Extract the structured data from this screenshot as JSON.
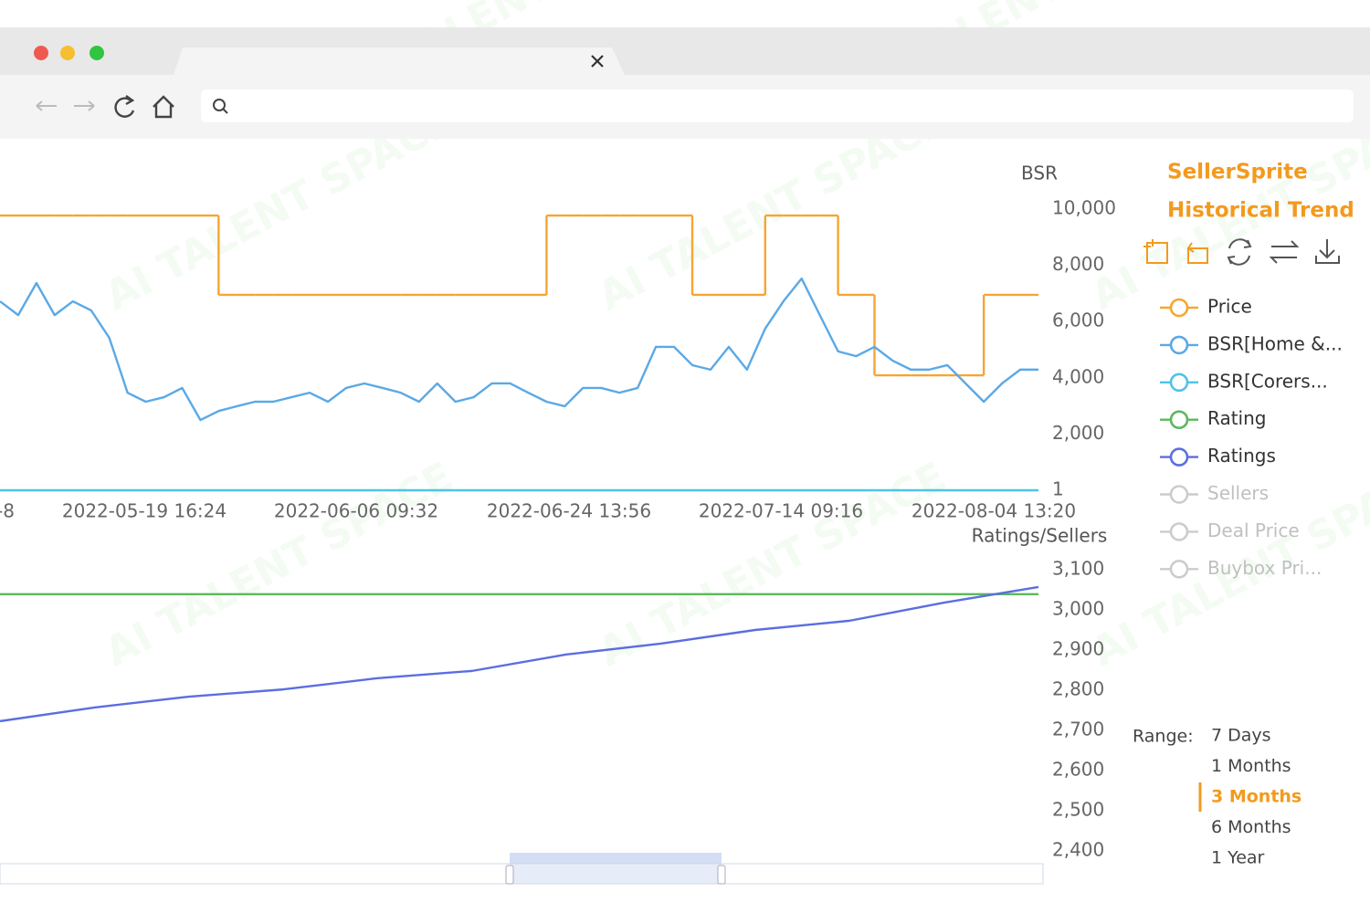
{
  "brand": {
    "name": "SellerSprite",
    "subtitle": "Historical Trend"
  },
  "watermark": "AI TALENT SPACE",
  "bsr_chart": {
    "type": "line",
    "y_label": "BSR",
    "x_labels": [
      "-8",
      "2022-05-19 16:24",
      "2022-06-06 09:32",
      "2022-06-24 13:56",
      "2022-07-14 09:16",
      "2022-08-04 13:20"
    ],
    "ylim": [
      1,
      10000
    ],
    "yticks": [
      1,
      {
        "value": 2000,
        "label": "2,000"
      },
      {
        "value": 4000,
        "label": "4,000"
      },
      {
        "value": 6000,
        "label": "6,000"
      },
      {
        "value": 8000,
        "label": "8,000"
      },
      {
        "value": 10000,
        "label": "10,000"
      }
    ],
    "series": [
      {
        "name": "Price",
        "color": "#f6a532",
        "step": true,
        "values": [
          9770,
          9770,
          9770,
          9770,
          9770,
          9770,
          9770,
          9770,
          9770,
          9770,
          9770,
          9770,
          6950,
          6950,
          6950,
          6950,
          6950,
          6950,
          6950,
          6950,
          6950,
          6950,
          6950,
          6950,
          6950,
          6950,
          6950,
          6950,
          6950,
          6950,
          9770,
          9770,
          9770,
          9770,
          9770,
          9770,
          9770,
          9770,
          6950,
          6950,
          6950,
          6950,
          9770,
          9770,
          9770,
          9770,
          6950,
          6950,
          4090,
          4090,
          4090,
          4090,
          4090,
          4090,
          6950,
          6950,
          6950,
          6950
        ]
      },
      {
        "name": "BSR[Home &...",
        "color": "#5aa9e6",
        "values": [
          6720,
          6230,
          7370,
          6230,
          6720,
          6400,
          5420,
          3470,
          3150,
          3310,
          3640,
          2500,
          2820,
          2990,
          3150,
          3150,
          3310,
          3470,
          3150,
          3640,
          3800,
          3640,
          3470,
          3150,
          3800,
          3150,
          3310,
          3800,
          3800,
          3470,
          3150,
          2990,
          3640,
          3640,
          3470,
          3640,
          5100,
          5100,
          4450,
          4290,
          5100,
          4290,
          5750,
          6720,
          7530,
          6230,
          4940,
          4770,
          5100,
          4610,
          4290,
          4290,
          4450,
          3800,
          3150,
          3800,
          4290,
          4290
        ]
      },
      {
        "name": "BSR[Corers...",
        "color": "#4fc3e8",
        "values": [
          1,
          1,
          1,
          1,
          1,
          1,
          1,
          1,
          1,
          1,
          1,
          1,
          1,
          1,
          1,
          1,
          1,
          1,
          1,
          1,
          1,
          1,
          1,
          1,
          1,
          1,
          1,
          1,
          1,
          1,
          1,
          1,
          1,
          1,
          1,
          1,
          1,
          1,
          1,
          1,
          1,
          1,
          1,
          1,
          1,
          1,
          1,
          1,
          1,
          1,
          1,
          1,
          1,
          1,
          1,
          1,
          1,
          1
        ]
      }
    ]
  },
  "ratings_chart": {
    "type": "line",
    "y_label": "Ratings/Sellers",
    "ylim": [
      2400,
      3100
    ],
    "yticks": [
      {
        "value": 2400,
        "label": "2,400"
      },
      {
        "value": 2500,
        "label": "2,500"
      },
      {
        "value": 2600,
        "label": "2,600"
      },
      {
        "value": 2700,
        "label": "2,700"
      },
      {
        "value": 2800,
        "label": "2,800"
      },
      {
        "value": 2900,
        "label": "2,900"
      },
      {
        "value": 3000,
        "label": "3,000"
      },
      {
        "value": 3100,
        "label": "3,100"
      }
    ],
    "series": [
      {
        "name": "Rating",
        "color": "#5cb85c",
        "values": [
          3039,
          3039,
          3039,
          3039,
          3039,
          3039,
          3039,
          3039,
          3039,
          3039,
          3039,
          3039
        ]
      },
      {
        "name": "Ratings",
        "color": "#5b6ee1",
        "values": [
          2723,
          2757,
          2784,
          2802,
          2830,
          2848,
          2889,
          2916,
          2950,
          2973,
          3018,
          3057
        ]
      }
    ]
  },
  "legend": [
    {
      "name": "Price",
      "color": "#f6a532",
      "active": true
    },
    {
      "name": "BSR[Home &...",
      "color": "#5aa9e6",
      "active": true
    },
    {
      "name": "BSR[Corers...",
      "color": "#4fc3e8",
      "active": true
    },
    {
      "name": "Rating",
      "color": "#5cb85c",
      "active": true
    },
    {
      "name": "Ratings",
      "color": "#5b6ee1",
      "active": true
    },
    {
      "name": "Sellers",
      "color": "#c8c8c8",
      "active": false
    },
    {
      "name": "Deal Price",
      "color": "#c8c8c8",
      "active": false
    },
    {
      "name": "Buybox Pri...",
      "color": "#c8c8c8",
      "active": false
    }
  ],
  "range": {
    "label": "Range:",
    "options": [
      "7 Days",
      "1 Months",
      "3 Months",
      "6 Months",
      "1 Year"
    ],
    "selected": 2,
    "selected_color": "#f39a1e"
  }
}
